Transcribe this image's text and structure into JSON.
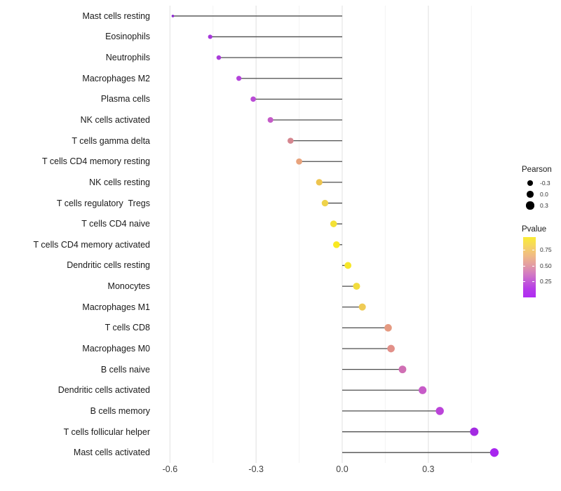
{
  "chart_data": {
    "type": "scatter",
    "subtype": "lollipop",
    "title": "",
    "xlabel": "",
    "ylabel": "",
    "grid": "vertical-only",
    "legend_position": "right",
    "x_ticks": [
      "-0.6",
      "-0.3",
      "0.0",
      "0.3"
    ],
    "x_tick_values": [
      -0.6,
      -0.3,
      0.0,
      0.3
    ],
    "x_minor_tick_values": [
      -0.45,
      -0.15,
      0.15,
      0.45
    ],
    "xlim": [
      -0.65,
      0.59
    ],
    "points": [
      {
        "label": "Mast cells resting",
        "pearson": -0.59,
        "pvalue": 0.003,
        "color": "#8F2BD0"
      },
      {
        "label": "Eosinophils",
        "pearson": -0.46,
        "pvalue": 0.02,
        "color": "#A636DA"
      },
      {
        "label": "Neutrophils",
        "pearson": -0.43,
        "pvalue": 0.035,
        "color": "#AA3CDA"
      },
      {
        "label": "Macrophages M2",
        "pearson": -0.36,
        "pvalue": 0.08,
        "color": "#B443DB"
      },
      {
        "label": "Plasma cells",
        "pearson": -0.31,
        "pvalue": 0.13,
        "color": "#BA4BD6"
      },
      {
        "label": "NK cells activated",
        "pearson": -0.25,
        "pvalue": 0.21,
        "color": "#C55BC8"
      },
      {
        "label": "T cells gamma delta",
        "pearson": -0.18,
        "pvalue": 0.38,
        "color": "#D5868F"
      },
      {
        "label": "T cells CD4 memory resting",
        "pearson": -0.15,
        "pvalue": 0.47,
        "color": "#E8A37C"
      },
      {
        "label": "NK cells resting",
        "pearson": -0.08,
        "pvalue": 0.67,
        "color": "#EDC44F"
      },
      {
        "label": "T cells regulatory  Tregs",
        "pearson": -0.06,
        "pvalue": 0.74,
        "color": "#EFD34B"
      },
      {
        "label": "T cells CD4 naive",
        "pearson": -0.03,
        "pvalue": 0.86,
        "color": "#F4E135"
      },
      {
        "label": "T cells CD4 memory activated",
        "pearson": -0.02,
        "pvalue": 0.93,
        "color": "#F9E921"
      },
      {
        "label": "Dendritic cells resting",
        "pearson": 0.02,
        "pvalue": 0.9,
        "color": "#F7E72B"
      },
      {
        "label": "Monocytes",
        "pearson": 0.05,
        "pvalue": 0.8,
        "color": "#F2DC3D"
      },
      {
        "label": "Macrophages M1",
        "pearson": 0.07,
        "pvalue": 0.71,
        "color": "#EFCB55"
      },
      {
        "label": "T cells CD8",
        "pearson": 0.16,
        "pvalue": 0.44,
        "color": "#E59A81"
      },
      {
        "label": "Macrophages M0",
        "pearson": 0.17,
        "pvalue": 0.41,
        "color": "#E29089"
      },
      {
        "label": "B cells naive",
        "pearson": 0.21,
        "pvalue": 0.29,
        "color": "#D06FB4"
      },
      {
        "label": "Dendritic cells activated",
        "pearson": 0.28,
        "pvalue": 0.19,
        "color": "#C75BC8"
      },
      {
        "label": "B cells memory",
        "pearson": 0.34,
        "pvalue": 0.11,
        "color": "#BB44D9"
      },
      {
        "label": "T cells follicular helper",
        "pearson": 0.46,
        "pvalue": 0.025,
        "color": "#A32BE2"
      },
      {
        "label": "Mast cells activated",
        "pearson": 0.53,
        "pvalue": 0.008,
        "color": "#A826EF"
      }
    ],
    "legend": {
      "size": {
        "title": "Pearson",
        "ticks": [
          "-0.3",
          "0.0",
          "0.3"
        ],
        "tick_values": [
          -0.3,
          0.0,
          0.3
        ],
        "dot_color": "#000000"
      },
      "color": {
        "title": "Pvalue",
        "ticks": [
          "0.75",
          "0.50",
          "0.25"
        ],
        "tick_values": [
          0.75,
          0.5,
          0.25
        ],
        "gradient_top_color": "#FAEC35",
        "gradient_bottom_color": "#B02BF2"
      }
    },
    "style_colors": {
      "stem_line": "#4D4D4D",
      "major_gridline": "#E7E7E7",
      "minor_gridline": "#F3F3F3",
      "axis_text": "#404040",
      "label_text": "#1a1a1a"
    }
  }
}
